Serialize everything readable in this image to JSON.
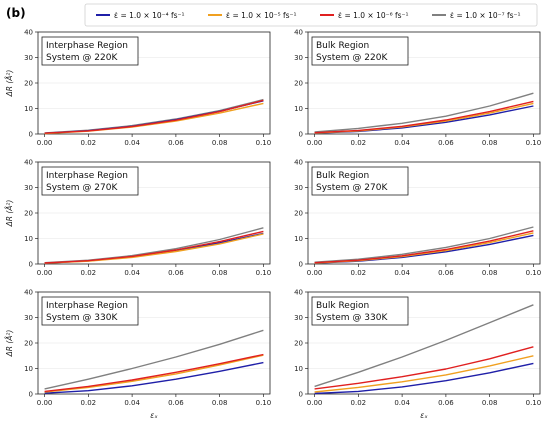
{
  "panel_label": "(b)",
  "legend": [
    {
      "label": "ε̇ = 1.0 × 10⁻⁴ fs⁻¹",
      "color": "#1f1fa8"
    },
    {
      "label": "ε̇ = 1.0 × 10⁻⁵ fs⁻¹",
      "color": "#f0a020"
    },
    {
      "label": "ε̇ = 1.0 × 10⁻⁶ fs⁻¹",
      "color": "#e02020"
    },
    {
      "label": "ε̇ = 1.0 × 10⁻⁷ fs⁻¹",
      "color": "#808080"
    }
  ],
  "ylabel": "ΔR (Å²)",
  "xlabel": "εₓ",
  "chart_data": [
    {
      "type": "line",
      "row": 0,
      "col": 0,
      "annotation": [
        "Interphase Region",
        "System @ 220K"
      ],
      "xlim": [
        0,
        0.1
      ],
      "ylim": [
        0,
        40
      ],
      "xticks": [
        "0.00",
        "0.02",
        "0.04",
        "0.06",
        "0.08",
        "0.10"
      ],
      "yticks": [
        "0",
        "10",
        "20",
        "30",
        "40"
      ],
      "x": [
        0,
        0.02,
        0.04,
        0.06,
        0.08,
        0.1
      ],
      "series": [
        {
          "color": "#1f1fa8",
          "values": [
            0.3,
            1.3,
            3.0,
            5.6,
            8.9,
            13.0
          ]
        },
        {
          "color": "#f0a020",
          "values": [
            0.2,
            1.1,
            2.7,
            5.1,
            8.2,
            12.0
          ]
        },
        {
          "color": "#e02020",
          "values": [
            0.3,
            1.2,
            2.9,
            5.4,
            8.8,
            13.2
          ]
        },
        {
          "color": "#808080",
          "values": [
            0.4,
            1.5,
            3.3,
            5.9,
            9.2,
            13.5
          ]
        }
      ]
    },
    {
      "type": "line",
      "row": 0,
      "col": 1,
      "annotation": [
        "Bulk Region",
        "System @ 220K"
      ],
      "xlim": [
        0,
        0.1
      ],
      "ylim": [
        0,
        40
      ],
      "xticks": [
        "0.00",
        "0.02",
        "0.04",
        "0.06",
        "0.08",
        "0.10"
      ],
      "yticks": [
        "0",
        "10",
        "20",
        "30",
        "40"
      ],
      "x": [
        0,
        0.02,
        0.04,
        0.06,
        0.08,
        0.1
      ],
      "series": [
        {
          "color": "#1f1fa8",
          "values": [
            0.3,
            1.0,
            2.4,
            4.6,
            7.5,
            11.0
          ]
        },
        {
          "color": "#f0a020",
          "values": [
            0.4,
            1.2,
            2.8,
            5.1,
            8.2,
            12.0
          ]
        },
        {
          "color": "#e02020",
          "values": [
            0.5,
            1.4,
            3.0,
            5.5,
            8.8,
            12.8
          ]
        },
        {
          "color": "#808080",
          "values": [
            0.8,
            2.2,
            4.2,
            7.0,
            11.0,
            16.0
          ]
        }
      ]
    },
    {
      "type": "line",
      "row": 1,
      "col": 0,
      "annotation": [
        "Interphase Region",
        "System @ 270K"
      ],
      "xlim": [
        0,
        0.1
      ],
      "ylim": [
        0,
        40
      ],
      "xticks": [
        "0.00",
        "0.02",
        "0.04",
        "0.06",
        "0.08",
        "0.10"
      ],
      "yticks": [
        "0",
        "10",
        "20",
        "30",
        "40"
      ],
      "x": [
        0,
        0.02,
        0.04,
        0.06,
        0.08,
        0.1
      ],
      "series": [
        {
          "color": "#1f1fa8",
          "values": [
            0.3,
            1.2,
            2.8,
            5.2,
            8.3,
            12.0
          ]
        },
        {
          "color": "#f0a020",
          "values": [
            0.3,
            1.1,
            2.6,
            4.9,
            7.9,
            11.8
          ]
        },
        {
          "color": "#e02020",
          "values": [
            0.4,
            1.3,
            3.0,
            5.5,
            8.8,
            12.8
          ]
        },
        {
          "color": "#808080",
          "values": [
            0.5,
            1.5,
            3.3,
            6.0,
            9.6,
            14.2
          ]
        }
      ]
    },
    {
      "type": "line",
      "row": 1,
      "col": 1,
      "annotation": [
        "Bulk Region",
        "System @ 270K"
      ],
      "xlim": [
        0,
        0.1
      ],
      "ylim": [
        0,
        40
      ],
      "xticks": [
        "0.00",
        "0.02",
        "0.04",
        "0.06",
        "0.08",
        "0.10"
      ],
      "yticks": [
        "0",
        "10",
        "20",
        "30",
        "40"
      ],
      "x": [
        0,
        0.02,
        0.04,
        0.06,
        0.08,
        0.1
      ],
      "series": [
        {
          "color": "#1f1fa8",
          "values": [
            0.3,
            1.1,
            2.6,
            4.8,
            7.7,
            11.2
          ]
        },
        {
          "color": "#f0a020",
          "values": [
            0.4,
            1.3,
            2.9,
            5.3,
            8.4,
            12.2
          ]
        },
        {
          "color": "#e02020",
          "values": [
            0.5,
            1.5,
            3.2,
            5.7,
            9.0,
            13.0
          ]
        },
        {
          "color": "#808080",
          "values": [
            0.7,
            1.9,
            3.8,
            6.5,
            10.0,
            14.5
          ]
        }
      ]
    },
    {
      "type": "line",
      "row": 2,
      "col": 0,
      "annotation": [
        "Interphase Region",
        "System @ 330K"
      ],
      "xlim": [
        0,
        0.1
      ],
      "ylim": [
        0,
        40
      ],
      "xticks": [
        "0.00",
        "0.02",
        "0.04",
        "0.06",
        "0.08",
        "0.10"
      ],
      "yticks": [
        "0",
        "10",
        "20",
        "30",
        "40"
      ],
      "x": [
        0,
        0.02,
        0.04,
        0.06,
        0.08,
        0.1
      ],
      "series": [
        {
          "color": "#1f1fa8",
          "values": [
            0.3,
            1.3,
            3.2,
            5.8,
            8.9,
            12.3
          ]
        },
        {
          "color": "#f0a020",
          "values": [
            0.8,
            2.6,
            5.0,
            7.9,
            11.4,
            15.2
          ]
        },
        {
          "color": "#e02020",
          "values": [
            1.0,
            3.0,
            5.5,
            8.5,
            11.9,
            15.5
          ]
        },
        {
          "color": "#808080",
          "values": [
            2.0,
            5.8,
            10.0,
            14.5,
            19.5,
            25.0
          ]
        }
      ]
    },
    {
      "type": "line",
      "row": 2,
      "col": 1,
      "annotation": [
        "Bulk Region",
        "System @ 330K"
      ],
      "xlim": [
        0,
        0.1
      ],
      "ylim": [
        0,
        40
      ],
      "xticks": [
        "0.00",
        "0.02",
        "0.04",
        "0.06",
        "0.08",
        "0.10"
      ],
      "yticks": [
        "0",
        "10",
        "20",
        "30",
        "40"
      ],
      "x": [
        0,
        0.02,
        0.04,
        0.06,
        0.08,
        0.1
      ],
      "series": [
        {
          "color": "#1f1fa8",
          "values": [
            0.2,
            1.0,
            2.8,
            5.2,
            8.3,
            12.0
          ]
        },
        {
          "color": "#f0a020",
          "values": [
            0.8,
            2.6,
            4.8,
            7.5,
            11.0,
            15.0
          ]
        },
        {
          "color": "#e02020",
          "values": [
            2.0,
            4.2,
            6.8,
            9.8,
            13.8,
            18.5
          ]
        },
        {
          "color": "#808080",
          "values": [
            3.0,
            8.5,
            14.5,
            21.0,
            28.0,
            35.0
          ]
        }
      ]
    }
  ]
}
